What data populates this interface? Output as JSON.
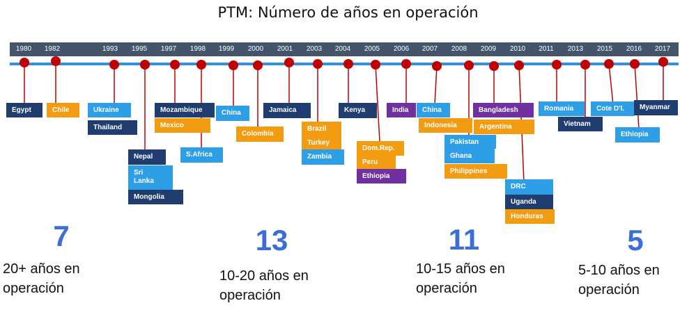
{
  "title": "PTM: Número de años en operación",
  "years": [
    "1980",
    "1982",
    "1993",
    "1995",
    "1997",
    "1998",
    "1999",
    "2000",
    "2001",
    "2003",
    "2004",
    "2005",
    "2006",
    "2007",
    "2008",
    "2009",
    "2010",
    "2011",
    "2013",
    "2015",
    "2016",
    "2017"
  ],
  "countries": {
    "egypt": "Egypt",
    "chile": "Chile",
    "ukraine": "Ukraine",
    "thailand": "Thailand",
    "nepal": "Nepal",
    "srilanka": "Sri\nLanka",
    "mongolia": "Mongolia",
    "mozambique": "Mozambique",
    "mexico": "Mexico",
    "safrica": "S.Africa",
    "china1999": "China",
    "colombia": "Colombia",
    "jamaica": "Jamaica",
    "brazil": "Brazil",
    "turkey": "Turkey",
    "zambia": "Zambia",
    "kenya": "Kenya",
    "domrep": "Dom.Rep.",
    "peru": "Peru",
    "ethiopia2005": "Ethiopia",
    "india": "India",
    "china2007": "China",
    "indonesia": "Indonesia",
    "pakistan": "Pakistan",
    "ghana": "Ghana",
    "philippines": "Philippines",
    "bangladesh": "Bangladesh",
    "argentina": "Argentina",
    "drc": "DRC",
    "uganda": "Uganda",
    "honduras": "Honduras",
    "romania": "Romania",
    "vietnam": "Vietnam",
    "cotedi": "Cote D'I.",
    "ethiopia2016": "Ethiopia",
    "myanmar": "Myanmar"
  },
  "groups": [
    {
      "count": "7",
      "label": "20+ años en\noperación"
    },
    {
      "count": "13",
      "label": "10-20 años en\noperación"
    },
    {
      "count": "11",
      "label": "10-15 años en\noperación"
    },
    {
      "count": "5",
      "label": "5-10 años en\noperación"
    }
  ],
  "colors": {
    "navy": "#1f3d6e",
    "blue": "#2e9fe6",
    "orange": "#f39c12",
    "purple": "#7030a0",
    "dot": "#c00000",
    "axis": "#3a8fd6",
    "yearbar": "#44546a"
  }
}
